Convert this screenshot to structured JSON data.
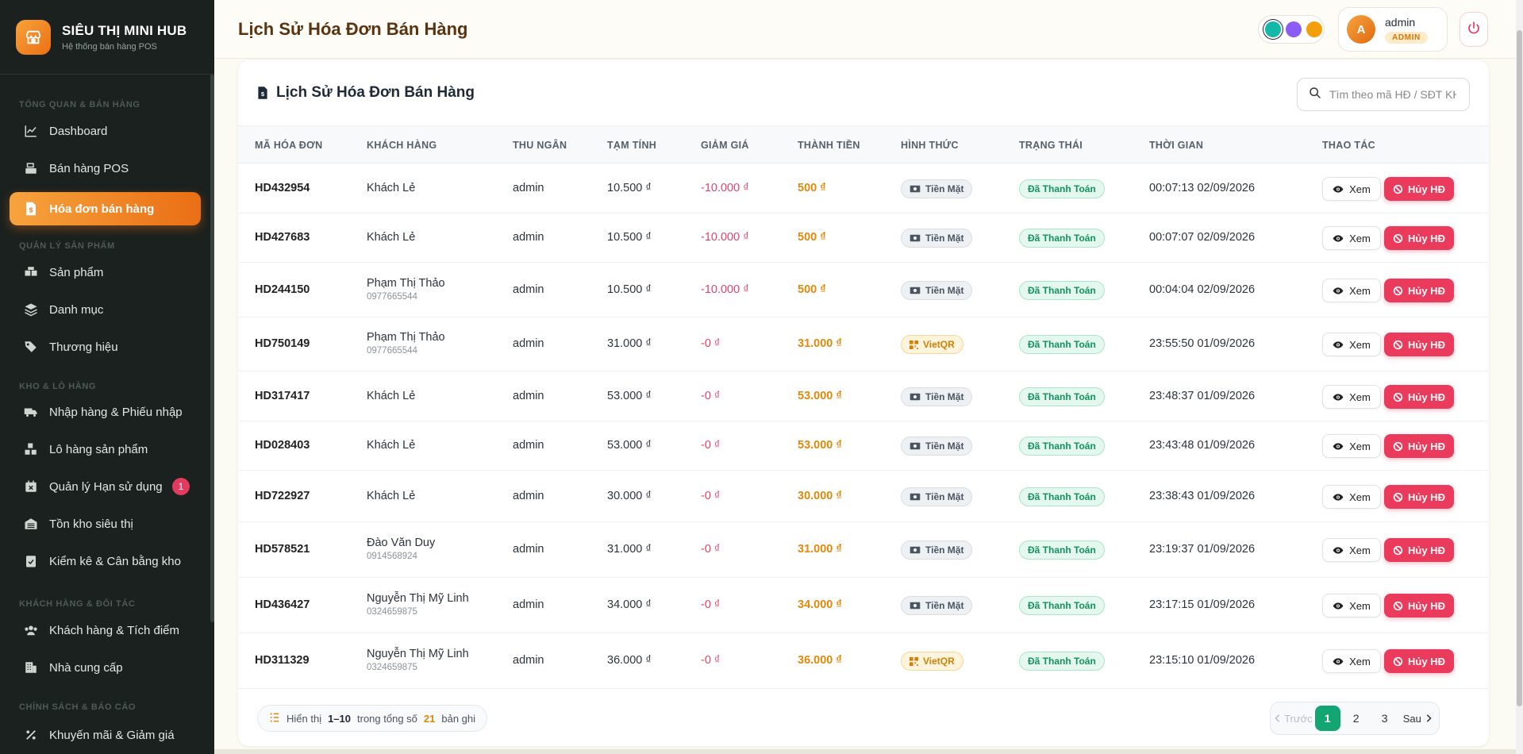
{
  "brand": {
    "title": "SIÊU THỊ MINI HUB",
    "subtitle": "Hệ thống bán hàng POS"
  },
  "sidebar": {
    "sections": [
      {
        "title": "TỔNG QUAN & BÁN HÀNG",
        "items": [
          {
            "label": "Dashboard",
            "icon": "chart-line-icon"
          },
          {
            "label": "Bán hàng POS",
            "icon": "cash-register-icon"
          },
          {
            "label": "Hóa đơn bán hàng",
            "icon": "invoice-icon",
            "active": true
          }
        ]
      },
      {
        "title": "QUẢN LÝ SẢN PHẨM",
        "items": [
          {
            "label": "Sản phẩm",
            "icon": "boxes-icon"
          },
          {
            "label": "Danh mục",
            "icon": "layers-icon"
          },
          {
            "label": "Thương hiệu",
            "icon": "tags-icon"
          }
        ]
      },
      {
        "title": "KHO & LÔ HÀNG",
        "items": [
          {
            "label": "Nhập hàng & Phiếu nhập",
            "icon": "truck-icon"
          },
          {
            "label": "Lô hàng sản phẩm",
            "icon": "cubes-icon"
          },
          {
            "label": "Quản lý Hạn sử dụng",
            "icon": "calendar-x-icon",
            "badge": "1"
          },
          {
            "label": "Tồn kho siêu thị",
            "icon": "warehouse-icon"
          },
          {
            "label": "Kiểm kê & Cân bằng kho",
            "icon": "clipboard-check-icon"
          }
        ]
      },
      {
        "title": "KHÁCH HÀNG & ĐỐI TÁC",
        "items": [
          {
            "label": "Khách hàng & Tích điểm",
            "icon": "users-icon"
          },
          {
            "label": "Nhà cung cấp",
            "icon": "building-icon"
          }
        ]
      },
      {
        "title": "CHÍNH SÁCH & BÁO CÁO",
        "items": [
          {
            "label": "Khuyến mãi & Giảm giá",
            "icon": "percent-icon"
          }
        ]
      }
    ]
  },
  "header": {
    "title": "Lịch Sử Hóa Đơn Bán Hàng",
    "theme_colors": [
      "#14b8a6",
      "#8b5cf6",
      "#f59e0b"
    ],
    "user": {
      "initial": "A",
      "name": "admin",
      "role": "ADMIN"
    }
  },
  "main": {
    "title": "Lịch Sử Hóa Đơn Bán Hàng",
    "search_placeholder": "Tìm theo mã HĐ / SĐT KH",
    "columns": [
      "MÃ HÓA ĐƠN",
      "KHÁCH HÀNG",
      "THU NGÂN",
      "TẠM TÍNH",
      "GIẢM GIÁ",
      "THÀNH TIỀN",
      "HÌNH THỨC",
      "TRẠNG THÁI",
      "THỜI GIAN",
      "THAO TÁC"
    ],
    "rows": [
      {
        "id": "HD432954",
        "customer": "Khách Lẻ",
        "phone": "",
        "cashier": "admin",
        "subtotal": "10.500 ₫",
        "discount": "-10.000 ₫",
        "total": "500 ₫",
        "method": "Tiền Mặt",
        "method_type": "cash",
        "status": "Đã Thanh Toán",
        "time": "00:07:13 02/09/2026"
      },
      {
        "id": "HD427683",
        "customer": "Khách Lẻ",
        "phone": "",
        "cashier": "admin",
        "subtotal": "10.500 ₫",
        "discount": "-10.000 ₫",
        "total": "500 ₫",
        "method": "Tiền Mặt",
        "method_type": "cash",
        "status": "Đã Thanh Toán",
        "time": "00:07:07 02/09/2026"
      },
      {
        "id": "HD244150",
        "customer": "Phạm Thị Thảo",
        "phone": "0977665544",
        "cashier": "admin",
        "subtotal": "10.500 ₫",
        "discount": "-10.000 ₫",
        "total": "500 ₫",
        "method": "Tiền Mặt",
        "method_type": "cash",
        "status": "Đã Thanh Toán",
        "time": "00:04:04 02/09/2026"
      },
      {
        "id": "HD750149",
        "customer": "Phạm Thị Thảo",
        "phone": "0977665544",
        "cashier": "admin",
        "subtotal": "31.000 ₫",
        "discount": "-0 ₫",
        "total": "31.000 ₫",
        "method": "VietQR",
        "method_type": "qr",
        "status": "Đã Thanh Toán",
        "time": "23:55:50 01/09/2026"
      },
      {
        "id": "HD317417",
        "customer": "Khách Lẻ",
        "phone": "",
        "cashier": "admin",
        "subtotal": "53.000 ₫",
        "discount": "-0 ₫",
        "total": "53.000 ₫",
        "method": "Tiền Mặt",
        "method_type": "cash",
        "status": "Đã Thanh Toán",
        "time": "23:48:37 01/09/2026"
      },
      {
        "id": "HD028403",
        "customer": "Khách Lẻ",
        "phone": "",
        "cashier": "admin",
        "subtotal": "53.000 ₫",
        "discount": "-0 ₫",
        "total": "53.000 ₫",
        "method": "Tiền Mặt",
        "method_type": "cash",
        "status": "Đã Thanh Toán",
        "time": "23:43:48 01/09/2026"
      },
      {
        "id": "HD722927",
        "customer": "Khách Lẻ",
        "phone": "",
        "cashier": "admin",
        "subtotal": "30.000 ₫",
        "discount": "-0 ₫",
        "total": "30.000 ₫",
        "method": "Tiền Mặt",
        "method_type": "cash",
        "status": "Đã Thanh Toán",
        "time": "23:38:43 01/09/2026"
      },
      {
        "id": "HD578521",
        "customer": "Đào Văn Duy",
        "phone": "0914568924",
        "cashier": "admin",
        "subtotal": "31.000 ₫",
        "discount": "-0 ₫",
        "total": "31.000 ₫",
        "method": "Tiền Mặt",
        "method_type": "cash",
        "status": "Đã Thanh Toán",
        "time": "23:19:37 01/09/2026"
      },
      {
        "id": "HD436427",
        "customer": "Nguyễn Thị Mỹ Linh",
        "phone": "0324659875",
        "cashier": "admin",
        "subtotal": "34.000 ₫",
        "discount": "-0 ₫",
        "total": "34.000 ₫",
        "method": "Tiền Mặt",
        "method_type": "cash",
        "status": "Đã Thanh Toán",
        "time": "23:17:15 01/09/2026"
      },
      {
        "id": "HD311329",
        "customer": "Nguyễn Thị Mỹ Linh",
        "phone": "0324659875",
        "cashier": "admin",
        "subtotal": "36.000 ₫",
        "discount": "-0 ₫",
        "total": "36.000 ₫",
        "method": "VietQR",
        "method_type": "qr",
        "status": "Đã Thanh Toán",
        "time": "23:15:10 01/09/2026"
      }
    ],
    "actions": {
      "view": "Xem",
      "cancel": "Hủy HĐ"
    },
    "summary": {
      "prefix": "Hiển thị",
      "range": "1–10",
      "middle": "trong tổng số",
      "total": "21",
      "suffix": "bản ghi"
    },
    "pagination": {
      "prev": "Trước",
      "pages": [
        "1",
        "2",
        "3"
      ],
      "current": "1",
      "next": "Sau"
    }
  }
}
